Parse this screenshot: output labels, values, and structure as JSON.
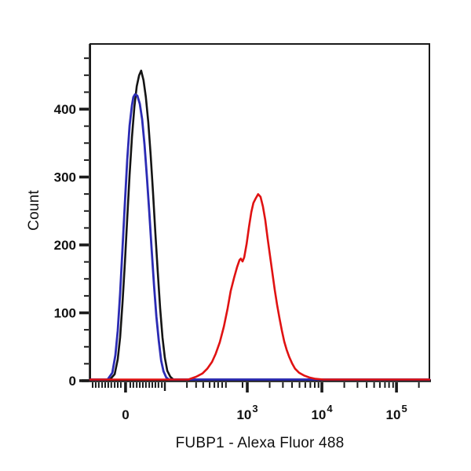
{
  "figure": {
    "background_color": "#ffffff",
    "axis_color": "#1a1a1a",
    "tick_label_color": "#111111"
  },
  "chart_data": {
    "type": "line",
    "subtype": "flow-cytometry-histogram",
    "title": "",
    "xlabel": "FUBP1 - Alexa Fluor 488",
    "ylabel": "Count",
    "legend_position": "none",
    "grid": false,
    "x_axis": {
      "scale": "biexponential-log",
      "major_ticks": [
        {
          "base": "0",
          "exp": "",
          "fx": 0.104
        },
        {
          "base": "10",
          "exp": "3",
          "fx": 0.463
        },
        {
          "base": "10",
          "exp": "4",
          "fx": 0.683
        },
        {
          "base": "10",
          "exp": "5",
          "fx": 0.903
        }
      ],
      "semi_ticks_fx": [
        0.22
      ],
      "minor_ticks_fx": [
        0.007,
        0.016,
        0.025,
        0.035,
        0.044,
        0.053,
        0.062,
        0.072,
        0.081,
        0.09,
        0.118,
        0.127,
        0.137,
        0.146,
        0.155,
        0.164,
        0.174,
        0.183,
        0.192,
        0.201,
        0.211,
        0.285,
        0.312,
        0.333,
        0.352,
        0.366,
        0.377,
        0.389,
        0.4,
        0.449,
        0.529,
        0.568,
        0.595,
        0.617,
        0.634,
        0.649,
        0.662,
        0.673,
        0.749,
        0.788,
        0.815,
        0.837,
        0.854,
        0.869,
        0.881,
        0.893,
        0.969
      ]
    },
    "y_axis": {
      "min": 0,
      "max": 496,
      "major_ticks": [
        0,
        100,
        200,
        300,
        400
      ],
      "minor_step": 25
    },
    "series": [
      {
        "name": "black",
        "color": "#141414",
        "stroke_width": 2.6,
        "peak_count": 455,
        "points": [
          [
            0,
            0
          ],
          [
            0.058,
            0
          ],
          [
            0.072,
            8
          ],
          [
            0.081,
            30
          ],
          [
            0.088,
            62
          ],
          [
            0.095,
            112
          ],
          [
            0.102,
            172
          ],
          [
            0.109,
            238
          ],
          [
            0.116,
            302
          ],
          [
            0.123,
            357
          ],
          [
            0.13,
            402
          ],
          [
            0.137,
            432
          ],
          [
            0.144,
            448
          ],
          [
            0.15,
            455
          ],
          [
            0.157,
            441
          ],
          [
            0.164,
            416
          ],
          [
            0.171,
            379
          ],
          [
            0.178,
            331
          ],
          [
            0.185,
            276
          ],
          [
            0.192,
            216
          ],
          [
            0.199,
            158
          ],
          [
            0.206,
            105
          ],
          [
            0.213,
            62
          ],
          [
            0.22,
            32
          ],
          [
            0.227,
            13
          ],
          [
            0.236,
            4
          ],
          [
            0.245,
            0
          ],
          [
            1,
            0
          ]
        ]
      },
      {
        "name": "blue",
        "color": "#2b2bb4",
        "stroke_width": 2.8,
        "peak_count": 420,
        "points": [
          [
            0,
            0
          ],
          [
            0.051,
            0
          ],
          [
            0.065,
            10
          ],
          [
            0.074,
            36
          ],
          [
            0.081,
            72
          ],
          [
            0.088,
            126
          ],
          [
            0.095,
            192
          ],
          [
            0.102,
            260
          ],
          [
            0.109,
            324
          ],
          [
            0.116,
            374
          ],
          [
            0.123,
            404
          ],
          [
            0.127,
            416
          ],
          [
            0.132,
            420
          ],
          [
            0.139,
            418
          ],
          [
            0.146,
            406
          ],
          [
            0.153,
            383
          ],
          [
            0.16,
            346
          ],
          [
            0.167,
            299
          ],
          [
            0.174,
            246
          ],
          [
            0.181,
            191
          ],
          [
            0.188,
            139
          ],
          [
            0.195,
            93
          ],
          [
            0.202,
            57
          ],
          [
            0.209,
            28
          ],
          [
            0.216,
            12
          ],
          [
            0.224,
            3
          ],
          [
            0.232,
            0
          ],
          [
            1,
            0
          ]
        ]
      },
      {
        "name": "red",
        "color": "#e01212",
        "stroke_width": 2.6,
        "peak_count": 273,
        "points": [
          [
            0,
            0
          ],
          [
            0.289,
            0
          ],
          [
            0.312,
            4
          ],
          [
            0.331,
            9
          ],
          [
            0.345,
            16
          ],
          [
            0.359,
            26
          ],
          [
            0.37,
            38
          ],
          [
            0.382,
            55
          ],
          [
            0.394,
            78
          ],
          [
            0.405,
            105
          ],
          [
            0.414,
            130
          ],
          [
            0.424,
            150
          ],
          [
            0.433,
            166
          ],
          [
            0.44,
            176
          ],
          [
            0.444,
            178
          ],
          [
            0.449,
            174
          ],
          [
            0.454,
            180
          ],
          [
            0.461,
            200
          ],
          [
            0.468,
            225
          ],
          [
            0.475,
            247
          ],
          [
            0.481,
            260
          ],
          [
            0.488,
            267
          ],
          [
            0.495,
            273
          ],
          [
            0.502,
            269
          ],
          [
            0.509,
            255
          ],
          [
            0.516,
            235
          ],
          [
            0.523,
            208
          ],
          [
            0.53,
            182
          ],
          [
            0.537,
            157
          ],
          [
            0.544,
            132
          ],
          [
            0.551,
            110
          ],
          [
            0.558,
            90
          ],
          [
            0.565,
            72
          ],
          [
            0.572,
            56
          ],
          [
            0.579,
            44
          ],
          [
            0.586,
            34
          ],
          [
            0.595,
            24
          ],
          [
            0.604,
            16
          ],
          [
            0.616,
            10
          ],
          [
            0.63,
            6
          ],
          [
            0.646,
            3
          ],
          [
            0.664,
            1
          ],
          [
            0.688,
            0
          ],
          [
            1,
            0
          ]
        ]
      }
    ]
  }
}
